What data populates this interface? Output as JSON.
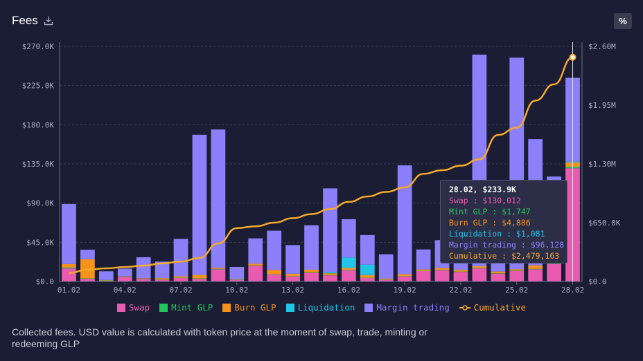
{
  "header": {
    "title": "Fees",
    "percent_label": "%"
  },
  "footer": {
    "text": "Collected fees. USD value is calculated with token price at the moment of swap, trade, minting or redeeming GLP"
  },
  "tooltip": {
    "title": "28.02, $233.9K",
    "lines": [
      {
        "text": "Swap : $130,012",
        "color": "#e95bb0"
      },
      {
        "text": "Mint GLP : $1,747",
        "color": "#22c55e"
      },
      {
        "text": "Burn GLP : $4,886",
        "color": "#f7931a"
      },
      {
        "text": "Liquidation : $1,081",
        "color": "#22c4e8"
      },
      {
        "text": "Margin trading : $96,128",
        "color": "#8b80f9"
      },
      {
        "text": "Cumulative : $2,479,163",
        "color": "#f7a928"
      }
    ]
  },
  "chart_data": {
    "type": "bar",
    "stacked": true,
    "categories": [
      "01.02",
      "02.02",
      "03.02",
      "04.02",
      "05.02",
      "06.02",
      "07.02",
      "08.02",
      "09.02",
      "10.02",
      "11.02",
      "12.02",
      "13.02",
      "14.02",
      "15.02",
      "16.02",
      "17.02",
      "18.02",
      "19.02",
      "20.02",
      "21.02",
      "22.02",
      "23.02",
      "24.02",
      "25.02",
      "26.02",
      "27.02",
      "28.02"
    ],
    "x_tick_labels": [
      "01.02",
      "04.02",
      "07.02",
      "10.02",
      "13.02",
      "16.02",
      "19.02",
      "22.02",
      "25.02",
      "28.02"
    ],
    "series": [
      {
        "name": "Swap",
        "color": "#e95bb0",
        "values": [
          15000,
          3000,
          1000,
          5000,
          3000,
          2000,
          4000,
          3000,
          14000,
          2000,
          18000,
          8000,
          6000,
          10000,
          7000,
          13000,
          4000,
          2000,
          6000,
          12000,
          13000,
          11000,
          15000,
          9000,
          12000,
          14000,
          20000,
          130012
        ]
      },
      {
        "name": "Mint GLP",
        "color": "#22c55e",
        "values": [
          1000,
          500,
          200,
          300,
          300,
          300,
          400,
          500,
          500,
          200,
          500,
          300,
          300,
          500,
          400,
          500,
          300,
          200,
          300,
          300,
          400,
          400,
          500,
          400,
          500,
          500,
          500,
          1747
        ]
      },
      {
        "name": "Burn GLP",
        "color": "#f7931a",
        "values": [
          4000,
          22000,
          500,
          500,
          500,
          1500,
          1500,
          4000,
          1000,
          500,
          2000,
          5000,
          2500,
          3000,
          2000,
          2000,
          3000,
          1000,
          2000,
          1500,
          2000,
          2000,
          2000,
          2000,
          1500,
          4000,
          2000,
          4886
        ]
      },
      {
        "name": "Liquidation",
        "color": "#22c4e8",
        "values": [
          0,
          0,
          0,
          0,
          0,
          0,
          0,
          0,
          0,
          0,
          0,
          0,
          0,
          0,
          1500,
          12000,
          12000,
          0,
          0,
          0,
          0,
          0,
          0,
          0,
          0,
          0,
          0,
          1081
        ]
      },
      {
        "name": "Margin trading",
        "color": "#8b80f9",
        "values": [
          69000,
          11000,
          10000,
          9000,
          24000,
          19000,
          43000,
          161000,
          159000,
          14000,
          29000,
          45000,
          33000,
          51000,
          96000,
          44000,
          34000,
          28000,
          125000,
          23000,
          32000,
          42000,
          243000,
          32000,
          243000,
          145000,
          98000,
          96128
        ]
      }
    ],
    "cumulative": {
      "name": "Cumulative",
      "color": "#f7a928",
      "values": [
        95000,
        130000,
        145000,
        160000,
        175000,
        200000,
        220000,
        260000,
        420000,
        590000,
        610000,
        650000,
        700000,
        745000,
        800000,
        880000,
        940000,
        990000,
        1040000,
        1190000,
        1230000,
        1280000,
        1350000,
        1620000,
        1700000,
        2000000,
        2180000,
        2479163
      ]
    },
    "y_left": {
      "min": 0,
      "max": 270000,
      "ticks": [
        "$0.0",
        "$45.0K",
        "$90.0K",
        "$135.0K",
        "$180.0K",
        "$225.0K",
        "$270.0K"
      ]
    },
    "y_right": {
      "min": 0,
      "max": 2600000,
      "ticks": [
        "$0.0",
        "$650.0K",
        "$1.30M",
        "$1.95M",
        "$2.60M"
      ]
    },
    "grid": "horizontal-dashed",
    "legend_position": "bottom"
  }
}
